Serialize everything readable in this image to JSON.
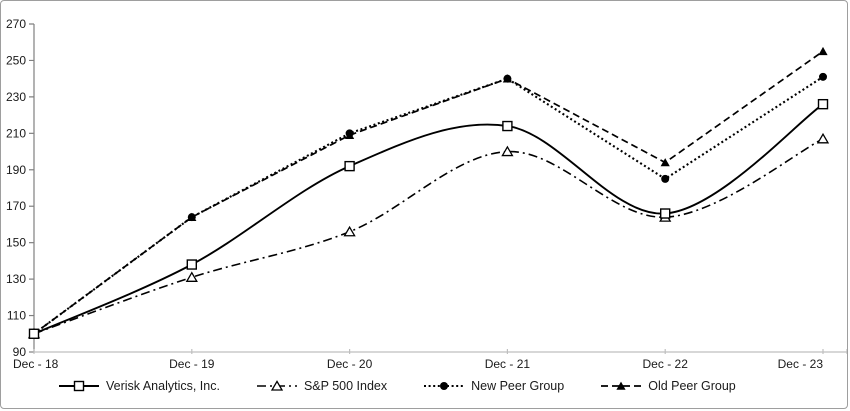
{
  "figure": {
    "background": "#ffffff",
    "border_color": "#9e9e9e",
    "series_color": "#000000",
    "y_axis_color": "#808080",
    "x_axis_color": "#bfbfbf",
    "label_color": "#1a1a1a"
  },
  "chart_data": {
    "type": "line",
    "title": "",
    "xlabel": "",
    "ylabel": "",
    "categories": [
      "Dec - 18",
      "Dec - 19",
      "Dec - 20",
      "Dec - 21",
      "Dec - 22",
      "Dec - 23"
    ],
    "ylim": [
      90,
      270
    ],
    "ytick_step": 20,
    "yticks": [
      90,
      110,
      130,
      150,
      170,
      190,
      210,
      230,
      250,
      270
    ],
    "grid": false,
    "legend_position": "bottom",
    "series": [
      {
        "name": "Verisk Analytics, Inc.",
        "values": [
          100,
          138,
          192,
          214,
          166,
          226
        ],
        "color": "#000000",
        "line_style": "solid",
        "marker": "open-square",
        "smooth": true
      },
      {
        "name": "S&P 500 Index",
        "values": [
          100,
          131,
          156,
          200,
          164,
          207
        ],
        "color": "#000000",
        "line_style": "dash-dot",
        "marker": "open-triangle",
        "smooth": true
      },
      {
        "name": "New Peer Group",
        "values": [
          100,
          164,
          210,
          240,
          185,
          241
        ],
        "color": "#000000",
        "line_style": "dotted",
        "marker": "filled-circle",
        "smooth": false
      },
      {
        "name": "Old Peer Group",
        "values": [
          100,
          164,
          209,
          240,
          194,
          255
        ],
        "color": "#000000",
        "line_style": "dashed",
        "marker": "filled-triangle",
        "smooth": false
      }
    ]
  }
}
